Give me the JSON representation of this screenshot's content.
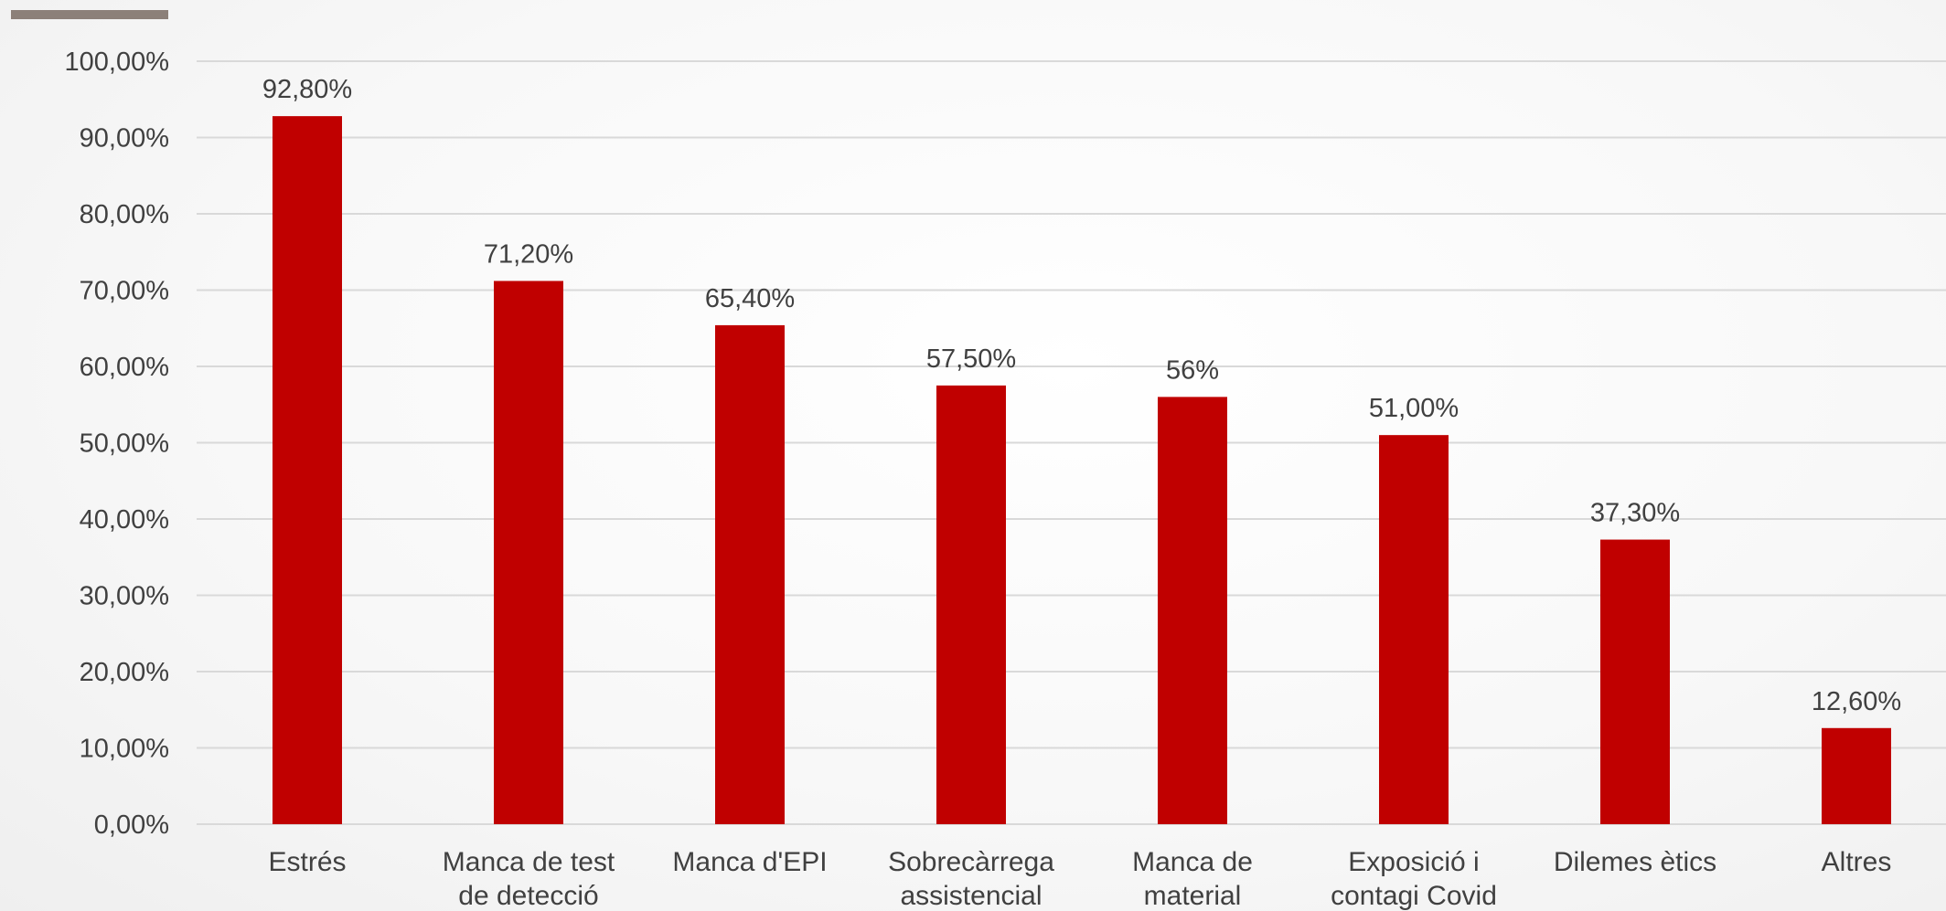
{
  "header": {
    "accent_color": "#8c8079"
  },
  "chart_data": {
    "type": "bar",
    "title": "",
    "xlabel": "",
    "ylabel": "",
    "categories": [
      [
        "Estrés"
      ],
      [
        "Manca de test",
        "de detecció"
      ],
      [
        "Manca d'EPI"
      ],
      [
        "Sobrecàrrega",
        "assistencial"
      ],
      [
        "Manca de",
        "material"
      ],
      [
        "Exposició i",
        "contagi Covid"
      ],
      [
        "Dilemes ètics"
      ],
      [
        "Altres"
      ]
    ],
    "values": [
      92.8,
      71.2,
      65.4,
      57.5,
      56,
      51.0,
      37.3,
      12.6
    ],
    "data_labels": [
      "92,80%",
      "71,20%",
      "65,40%",
      "57,50%",
      "56%",
      "51,00%",
      "37,30%",
      "12,60%"
    ],
    "ylim": [
      0,
      100
    ],
    "y_ticks": [
      {
        "value": 0,
        "label": "0,00%"
      },
      {
        "value": 10,
        "label": "10,00%"
      },
      {
        "value": 20,
        "label": "20,00%"
      },
      {
        "value": 30,
        "label": "30,00%"
      },
      {
        "value": 40,
        "label": "40,00%"
      },
      {
        "value": 50,
        "label": "50,00%"
      },
      {
        "value": 60,
        "label": "60,00%"
      },
      {
        "value": 70,
        "label": "70,00%"
      },
      {
        "value": 80,
        "label": "80,00%"
      },
      {
        "value": 90,
        "label": "90,00%"
      },
      {
        "value": 100,
        "label": "100,00%"
      }
    ],
    "grid": true,
    "legend": "none",
    "bar_color": "#c00000",
    "grid_color": "#d9d9d9",
    "text_color": "#404040"
  }
}
